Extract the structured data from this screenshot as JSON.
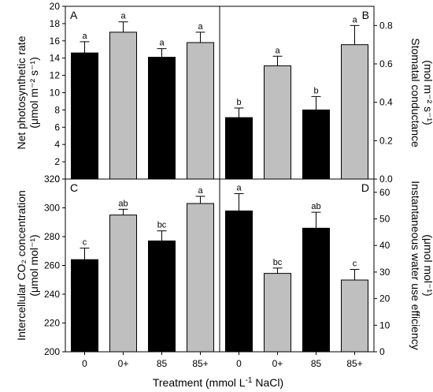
{
  "colors": {
    "dark": "#000000",
    "light": "#bfbfbf"
  },
  "xlabel_parts": [
    "Treatment (mmol L",
    "-1",
    " NaCl)"
  ],
  "chart_data": [
    {
      "type": "bar",
      "panel": "A",
      "categories": [
        "0",
        "0+",
        "85",
        "85+"
      ],
      "values": [
        14.6,
        17.0,
        14.1,
        15.8
      ],
      "errors": [
        1.3,
        1.2,
        1.0,
        1.2
      ],
      "significance": [
        "a",
        "a",
        "a",
        "a"
      ],
      "bar_colors": [
        "dark",
        "light",
        "dark",
        "light"
      ],
      "ylabel": [
        "Net photosynthetic rate",
        "(μmol m⁻² s⁻¹)"
      ],
      "yaxis_side": "left",
      "ylim": [
        0,
        20
      ],
      "yticks": [
        "0",
        "2",
        "4",
        "6",
        "8",
        "10",
        "12",
        "14",
        "16",
        "18",
        "20"
      ]
    },
    {
      "type": "bar",
      "panel": "B",
      "categories": [
        "0",
        "0+",
        "85",
        "85+"
      ],
      "values": [
        0.32,
        0.59,
        0.36,
        0.7
      ],
      "errors": [
        0.05,
        0.05,
        0.07,
        0.1
      ],
      "significance": [
        "b",
        "a",
        "b",
        "a"
      ],
      "bar_colors": [
        "dark",
        "light",
        "dark",
        "light"
      ],
      "ylabel": [
        "Stomatal conductance",
        "(mol m⁻² s⁻¹)"
      ],
      "yaxis_side": "right",
      "ylim": [
        0,
        0.9
      ],
      "yticks": [
        "0.0",
        "0.2",
        "0.4",
        "0.6",
        "0.8"
      ]
    },
    {
      "type": "bar",
      "panel": "C",
      "categories": [
        "0",
        "0+",
        "85",
        "85+"
      ],
      "values": [
        264,
        295,
        277,
        303
      ],
      "errors": [
        8,
        4,
        7,
        5
      ],
      "significance": [
        "c",
        "ab",
        "bc",
        "a"
      ],
      "bar_colors": [
        "dark",
        "light",
        "dark",
        "light"
      ],
      "ylabel": [
        "Intercellular CO₂ concentration",
        "(μmol mol⁻¹)"
      ],
      "yaxis_side": "left",
      "ylim": [
        200,
        320
      ],
      "yticks": [
        "200",
        "220",
        "240",
        "260",
        "280",
        "300",
        "320"
      ]
    },
    {
      "type": "bar",
      "panel": "D",
      "categories": [
        "0",
        "0+",
        "85",
        "85+"
      ],
      "values": [
        53,
        29.5,
        46.5,
        27
      ],
      "errors": [
        6.5,
        2,
        6,
        4
      ],
      "significance": [
        "a",
        "bc",
        "ab",
        "c"
      ],
      "bar_colors": [
        "dark",
        "light",
        "dark",
        "light"
      ],
      "ylabel": [
        "Instantaneous water use efficiency",
        "(μmol mol⁻¹)"
      ],
      "yaxis_side": "right",
      "ylim": [
        0,
        65
      ],
      "yticks": [
        "0",
        "10",
        "20",
        "30",
        "40",
        "50",
        "60"
      ]
    }
  ]
}
